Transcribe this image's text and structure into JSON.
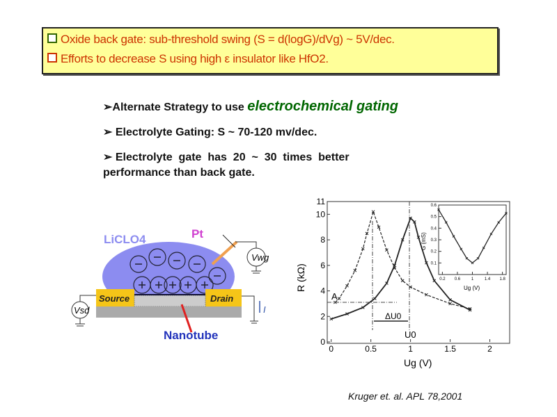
{
  "box": {
    "line1": "Oxide back gate: sub-threshold swing (S = d(logG)/dVg) ~  5V/dec.",
    "line2": "Efforts to decrease S using high ε insulator like HfO2.",
    "line1_color": "#cc3300",
    "line2_color": "#cc3300",
    "bg": "#ffff99"
  },
  "bullets": {
    "b1_prefix": "➢Alternate Strategy to use ",
    "b1_em": "electrochemical gating",
    "b2": "➢ Electrolyte Gating: S ~ 70-120 mv/dec.",
    "b3a": "➢ Electrolyte  gate  has  20  ~  30  times  better",
    "b3b": "performance than back gate."
  },
  "diagram": {
    "electrolyte": "LiCLO4",
    "pt": "Pt",
    "source": "Source",
    "drain": "Drain",
    "vsd": "Vsd",
    "vwg": "Vwg",
    "current": "I",
    "nanotube": "Nanotube",
    "electrolyte_color": "#8c8cf0",
    "contact_color": "#f5c518"
  },
  "citation": "Kruger et. al. APL 78,2001",
  "chart_data": [
    {
      "type": "line",
      "xlabel": "Ug (V)",
      "ylabel": "R (kΩ)",
      "xlim": [
        -0.05,
        2.25
      ],
      "ylim": [
        0,
        11
      ],
      "xticks": [
        "0",
        "0.5",
        "1",
        "1.5",
        "2"
      ],
      "yticks": [
        "0",
        "2",
        "4",
        "6",
        "8",
        "10",
        "11"
      ],
      "annotations": [
        "A",
        "ΔU0",
        "U0"
      ],
      "series": [
        {
          "x": [
            0.05,
            0.1,
            0.2,
            0.3,
            0.4,
            0.45,
            0.53,
            0.6,
            0.7,
            0.8,
            0.9,
            1.0,
            1.2,
            1.5,
            1.75
          ],
          "y": [
            3.1,
            3.4,
            4.4,
            5.6,
            7.3,
            8.5,
            10.2,
            9.0,
            7.2,
            5.8,
            4.8,
            4.3,
            3.7,
            3.0,
            2.6
          ]
        },
        {
          "x": [
            0,
            0.2,
            0.4,
            0.55,
            0.7,
            0.8,
            0.9,
            1.0,
            1.05,
            1.1,
            1.2,
            1.3,
            1.5,
            1.75
          ],
          "y": [
            1.8,
            2.2,
            2.7,
            3.4,
            4.6,
            6.0,
            8.0,
            9.7,
            9.4,
            8.2,
            6.2,
            4.8,
            3.3,
            2.5
          ]
        }
      ]
    },
    {
      "type": "line",
      "xlabel": "Ug (V)",
      "ylabel": "G (mS)",
      "xlim": [
        0.1,
        1.9
      ],
      "ylim": [
        0,
        0.6
      ],
      "xticks": [
        "0.2",
        "0.6",
        "1",
        "1.4",
        "1.8"
      ],
      "yticks": [
        "0.1",
        "0.2",
        "0.3",
        "0.4",
        "0.5",
        "0.6"
      ],
      "series": [
        {
          "x": [
            0.1,
            0.3,
            0.5,
            0.7,
            0.85,
            1.0,
            1.15,
            1.3,
            1.5,
            1.7,
            1.9
          ],
          "y": [
            0.56,
            0.45,
            0.33,
            0.22,
            0.14,
            0.1,
            0.14,
            0.23,
            0.35,
            0.45,
            0.53
          ]
        }
      ]
    }
  ]
}
